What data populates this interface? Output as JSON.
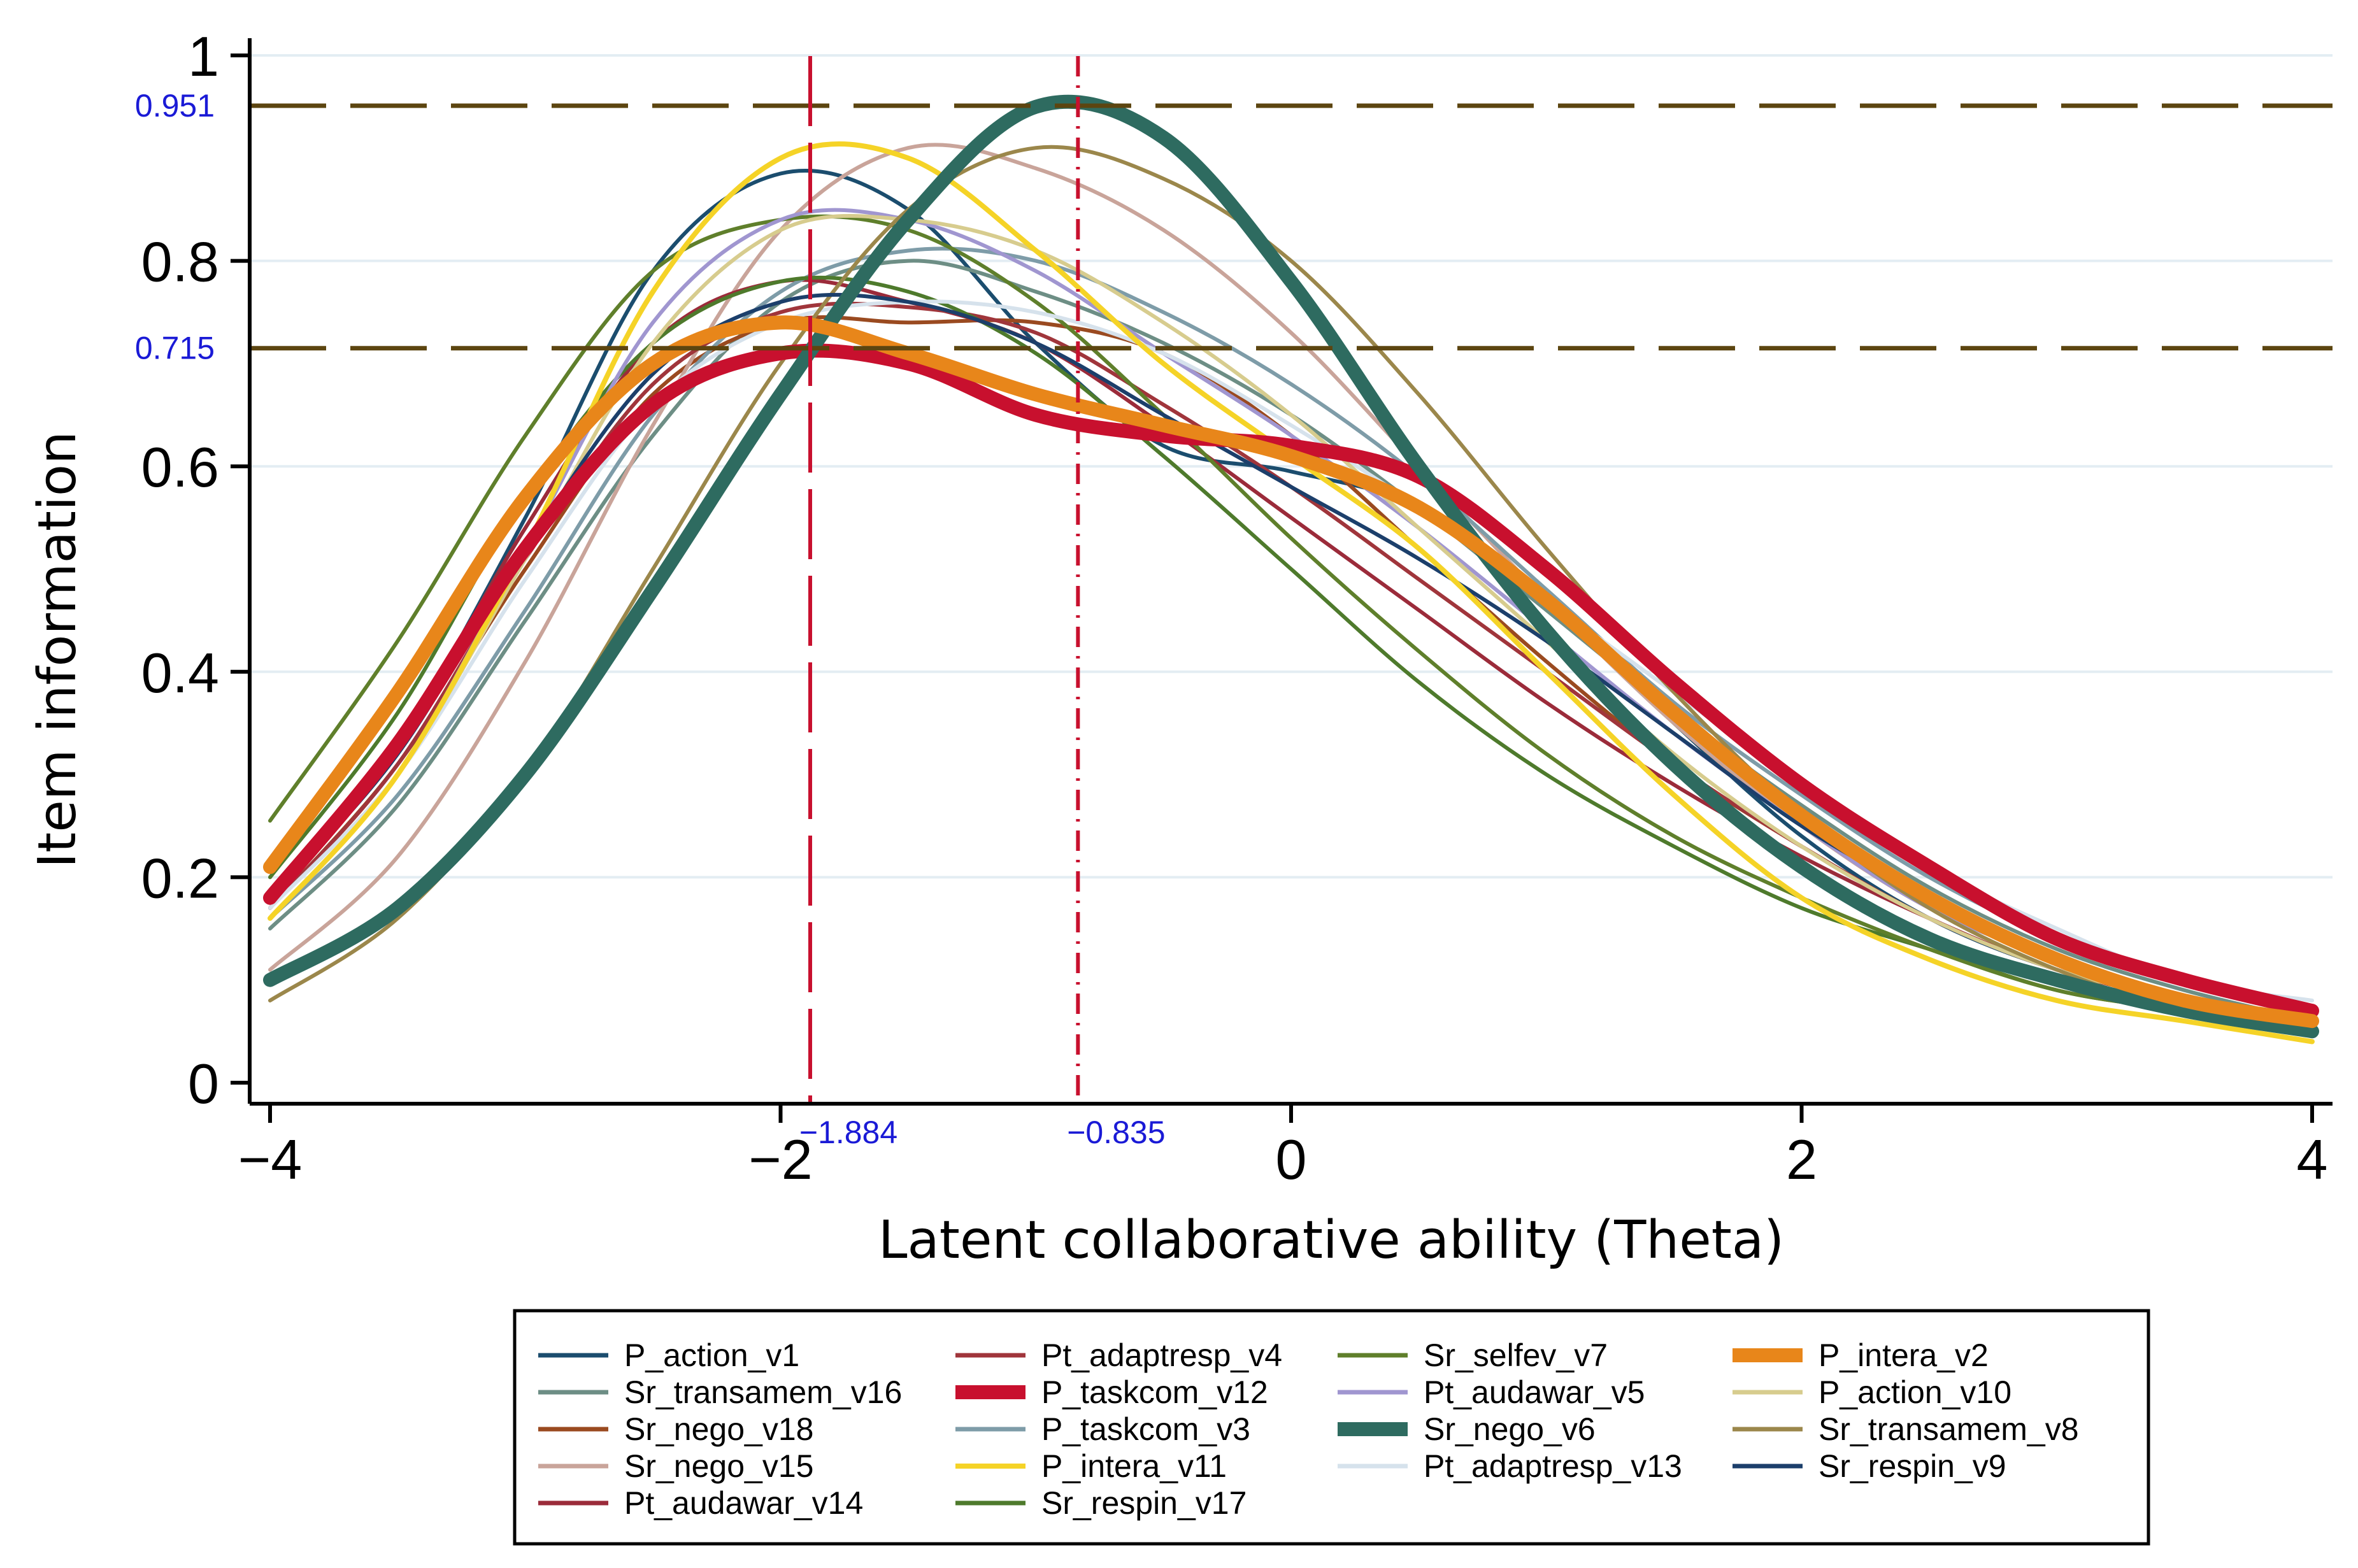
{
  "chart_data": {
    "type": "line",
    "title": "",
    "xlabel": "Latent collaborative ability (Theta)",
    "ylabel": "Item information",
    "xlim": [
      -4,
      4
    ],
    "ylim": [
      0,
      1
    ],
    "xticks": [
      -4,
      -2,
      0,
      2,
      4
    ],
    "xtick_labels": [
      "−4",
      "−2",
      "0",
      "2",
      "4"
    ],
    "yticks": [
      0,
      0.2,
      0.4,
      0.6,
      0.8,
      1
    ],
    "ytick_labels": [
      "0",
      "0.2",
      "0.4",
      "0.6",
      "0.8",
      "1"
    ],
    "grid": true,
    "x": [
      -4,
      -3.5,
      -3,
      -2.5,
      -2,
      -1.5,
      -1,
      -0.5,
      0,
      0.5,
      1,
      1.5,
      2,
      2.5,
      3,
      3.5,
      4
    ],
    "reference_lines": {
      "horizontal": [
        {
          "value": 0.951,
          "label": "0.951",
          "color": "#5c4510",
          "style": "dashed"
        },
        {
          "value": 0.715,
          "label": "0.715",
          "color": "#5c4510",
          "style": "dashed"
        }
      ],
      "vertical": [
        {
          "value": -1.884,
          "label": "−1.884",
          "color": "#c8102e",
          "style": "long-dash"
        },
        {
          "value": -0.835,
          "label": "−0.835",
          "color": "#c8102e",
          "style": "dash-dot"
        }
      ]
    },
    "series": [
      {
        "name": "P_action_v1",
        "color": "#1b4d6e",
        "width": 6,
        "values": [
          0.175,
          0.33,
          0.55,
          0.79,
          0.885,
          0.85,
          0.72,
          0.62,
          0.595,
          0.56,
          0.47,
          0.35,
          0.24,
          0.16,
          0.11,
          0.08,
          0.06
        ]
      },
      {
        "name": "Sr_transamem_v16",
        "color": "#6d8e85",
        "width": 6,
        "values": [
          0.15,
          0.27,
          0.45,
          0.63,
          0.76,
          0.8,
          0.77,
          0.72,
          0.65,
          0.56,
          0.46,
          0.36,
          0.27,
          0.19,
          0.13,
          0.09,
          0.06
        ]
      },
      {
        "name": "Sr_nego_v18",
        "color": "#9a4a20",
        "width": 6,
        "values": [
          0.17,
          0.31,
          0.5,
          0.67,
          0.74,
          0.74,
          0.74,
          0.71,
          0.63,
          0.52,
          0.41,
          0.31,
          0.23,
          0.16,
          0.11,
          0.08,
          0.06
        ]
      },
      {
        "name": "Sr_nego_v15",
        "color": "#c9a49a",
        "width": 6,
        "values": [
          0.11,
          0.22,
          0.41,
          0.64,
          0.83,
          0.91,
          0.89,
          0.83,
          0.73,
          0.6,
          0.47,
          0.35,
          0.25,
          0.17,
          0.12,
          0.08,
          0.05
        ]
      },
      {
        "name": "Pt_audawar_v14",
        "color": "#9b2b3a",
        "width": 6,
        "values": [
          0.18,
          0.33,
          0.54,
          0.72,
          0.78,
          0.76,
          0.72,
          0.64,
          0.55,
          0.46,
          0.37,
          0.29,
          0.22,
          0.16,
          0.11,
          0.08,
          0.06
        ]
      },
      {
        "name": "Pt_adaptresp_v4",
        "color": "#a0353b",
        "width": 6,
        "values": [
          0.17,
          0.31,
          0.51,
          0.68,
          0.75,
          0.755,
          0.73,
          0.66,
          0.58,
          0.49,
          0.4,
          0.31,
          0.23,
          0.16,
          0.11,
          0.08,
          0.06
        ]
      },
      {
        "name": "P_taskcom_v12",
        "color": "#c8102e",
        "width": 22,
        "values": [
          0.18,
          0.33,
          0.52,
          0.66,
          0.71,
          0.7,
          0.65,
          0.63,
          0.62,
          0.59,
          0.5,
          0.39,
          0.29,
          0.21,
          0.14,
          0.1,
          0.07
        ]
      },
      {
        "name": "P_taskcom_v3",
        "color": "#7e9ca8",
        "width": 6,
        "values": [
          0.16,
          0.28,
          0.46,
          0.65,
          0.77,
          0.81,
          0.8,
          0.75,
          0.68,
          0.59,
          0.48,
          0.37,
          0.28,
          0.2,
          0.14,
          0.1,
          0.07
        ]
      },
      {
        "name": "P_intera_v11",
        "color": "#f5d327",
        "width": 8,
        "values": [
          0.16,
          0.3,
          0.52,
          0.77,
          0.9,
          0.9,
          0.81,
          0.7,
          0.61,
          0.52,
          0.4,
          0.28,
          0.18,
          0.12,
          0.08,
          0.06,
          0.04
        ]
      },
      {
        "name": "Sr_respin_v17",
        "color": "#4e7a2c",
        "width": 6,
        "values": [
          0.2,
          0.36,
          0.57,
          0.72,
          0.78,
          0.77,
          0.71,
          0.61,
          0.5,
          0.39,
          0.3,
          0.23,
          0.17,
          0.13,
          0.09,
          0.07,
          0.05
        ]
      },
      {
        "name": "Sr_selfev_v7",
        "color": "#5f7f2b",
        "width": 6,
        "values": [
          0.255,
          0.43,
          0.63,
          0.79,
          0.84,
          0.83,
          0.76,
          0.65,
          0.53,
          0.42,
          0.32,
          0.24,
          0.18,
          0.13,
          0.09,
          0.07,
          0.05
        ]
      },
      {
        "name": "Pt_audawar_v5",
        "color": "#a096d0",
        "width": 6,
        "values": [
          0.16,
          0.3,
          0.52,
          0.74,
          0.84,
          0.84,
          0.79,
          0.71,
          0.63,
          0.54,
          0.44,
          0.34,
          0.25,
          0.17,
          0.12,
          0.08,
          0.06
        ]
      },
      {
        "name": "Sr_nego_v6",
        "color": "#2e6b60",
        "width": 22,
        "values": [
          0.1,
          0.17,
          0.3,
          0.48,
          0.67,
          0.84,
          0.95,
          0.92,
          0.78,
          0.6,
          0.44,
          0.31,
          0.21,
          0.14,
          0.1,
          0.07,
          0.05
        ]
      },
      {
        "name": "Pt_adaptresp_v13",
        "color": "#d6e2ec",
        "width": 6,
        "values": [
          0.17,
          0.3,
          0.49,
          0.66,
          0.74,
          0.76,
          0.75,
          0.71,
          0.64,
          0.56,
          0.47,
          0.38,
          0.29,
          0.21,
          0.15,
          0.1,
          0.08
        ]
      },
      {
        "name": "P_intera_v2",
        "color": "#e8861a",
        "width": 22,
        "values": [
          0.21,
          0.38,
          0.57,
          0.7,
          0.74,
          0.71,
          0.67,
          0.64,
          0.61,
          0.56,
          0.47,
          0.36,
          0.26,
          0.18,
          0.12,
          0.08,
          0.06
        ]
      },
      {
        "name": "P_action_v10",
        "color": "#d7cc8e",
        "width": 6,
        "values": [
          0.16,
          0.3,
          0.51,
          0.72,
          0.83,
          0.84,
          0.81,
          0.74,
          0.65,
          0.54,
          0.43,
          0.32,
          0.23,
          0.16,
          0.11,
          0.08,
          0.05
        ]
      },
      {
        "name": "Sr_transamem_v8",
        "color": "#9b874b",
        "width": 6,
        "values": [
          0.08,
          0.16,
          0.3,
          0.5,
          0.7,
          0.85,
          0.91,
          0.88,
          0.8,
          0.67,
          0.52,
          0.38,
          0.26,
          0.17,
          0.11,
          0.07,
          0.05
        ]
      },
      {
        "name": "Sr_respin_v9",
        "color": "#1c3f6b",
        "width": 6,
        "values": [
          0.18,
          0.32,
          0.52,
          0.69,
          0.76,
          0.76,
          0.72,
          0.65,
          0.58,
          0.51,
          0.43,
          0.34,
          0.25,
          0.18,
          0.12,
          0.08,
          0.06
        ]
      }
    ]
  }
}
